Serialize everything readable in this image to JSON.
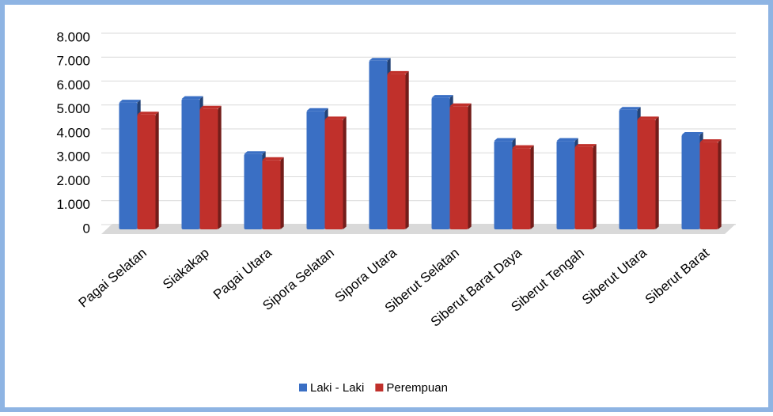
{
  "chart_data": {
    "type": "bar",
    "categories": [
      "Pagai Selatan",
      "Siakakap",
      "Pagai Utara",
      "Sipora Selatan",
      "Sipora Utara",
      "Siberut Selatan",
      "Siberut Barat Daya",
      "Siberut Tengah",
      "Siberut Utara",
      "Siberut Barat"
    ],
    "series": [
      {
        "name": "Laki - Laki",
        "color": "#3a6fc4",
        "values": [
          5300,
          5450,
          3150,
          4950,
          7050,
          5500,
          3700,
          3700,
          5000,
          3950
        ]
      },
      {
        "name": "Perempuan",
        "color": "#c0302b",
        "values": [
          4800,
          5050,
          2900,
          4600,
          6500,
          5150,
          3400,
          3450,
          4600,
          3650
        ]
      }
    ],
    "ylim": [
      0,
      8000
    ],
    "yticks": [
      0,
      {
        "value": 1000,
        "label": "1.000"
      },
      {
        "value": 2000,
        "label": "2.000"
      },
      {
        "value": 3000,
        "label": "3.000"
      },
      {
        "value": 4000,
        "label": "4.000"
      },
      {
        "value": 5000,
        "label": "5.000"
      },
      {
        "value": 6000,
        "label": "6.000"
      },
      {
        "value": 7000,
        "label": "7.000"
      },
      {
        "value": 8000,
        "label": "8.000"
      }
    ],
    "grid": true,
    "legend": "bottom"
  }
}
